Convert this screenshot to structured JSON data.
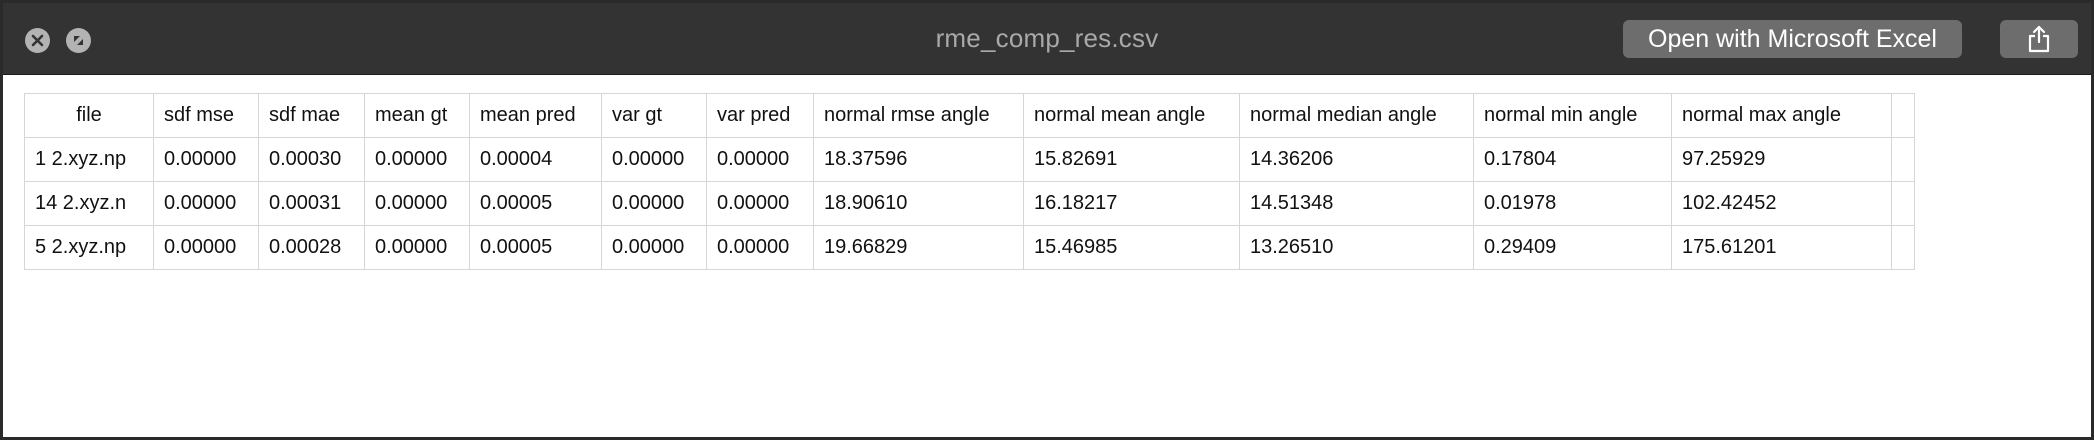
{
  "window": {
    "title": "rme_comp_res.csv",
    "open_button_label": "Open with Microsoft Excel"
  },
  "icons": {
    "close": "close-icon",
    "minimize": "minimize-icon",
    "share": "share-icon"
  },
  "table": {
    "headers": [
      "file",
      "sdf mse",
      "sdf mae",
      "mean gt",
      "mean pred",
      "var gt",
      "var pred",
      "normal rmse angle",
      "normal mean angle",
      "normal median angle",
      "normal min angle",
      "normal max angle",
      ""
    ],
    "rows": [
      [
        "1 2.xyz.np",
        "0.00000",
        "0.00030",
        "0.00000",
        "0.00004",
        "0.00000",
        "0.00000",
        "18.37596",
        "15.82691",
        "14.36206",
        "0.17804",
        "97.25929",
        ""
      ],
      [
        "14 2.xyz.n",
        "0.00000",
        "0.00031",
        "0.00000",
        "0.00005",
        "0.00000",
        "0.00000",
        "18.90610",
        "16.18217",
        "14.51348",
        "0.01978",
        "102.42452",
        ""
      ],
      [
        "5 2.xyz.np",
        "0.00000",
        "0.00028",
        "0.00000",
        "0.00005",
        "0.00000",
        "0.00000",
        "19.66829",
        "15.46985",
        "13.26510",
        "0.29409",
        "175.61201",
        ""
      ]
    ]
  },
  "colors": {
    "titlebar": "#333333",
    "button": "#6d6d6d",
    "grid_line": "#d6d6d6"
  }
}
